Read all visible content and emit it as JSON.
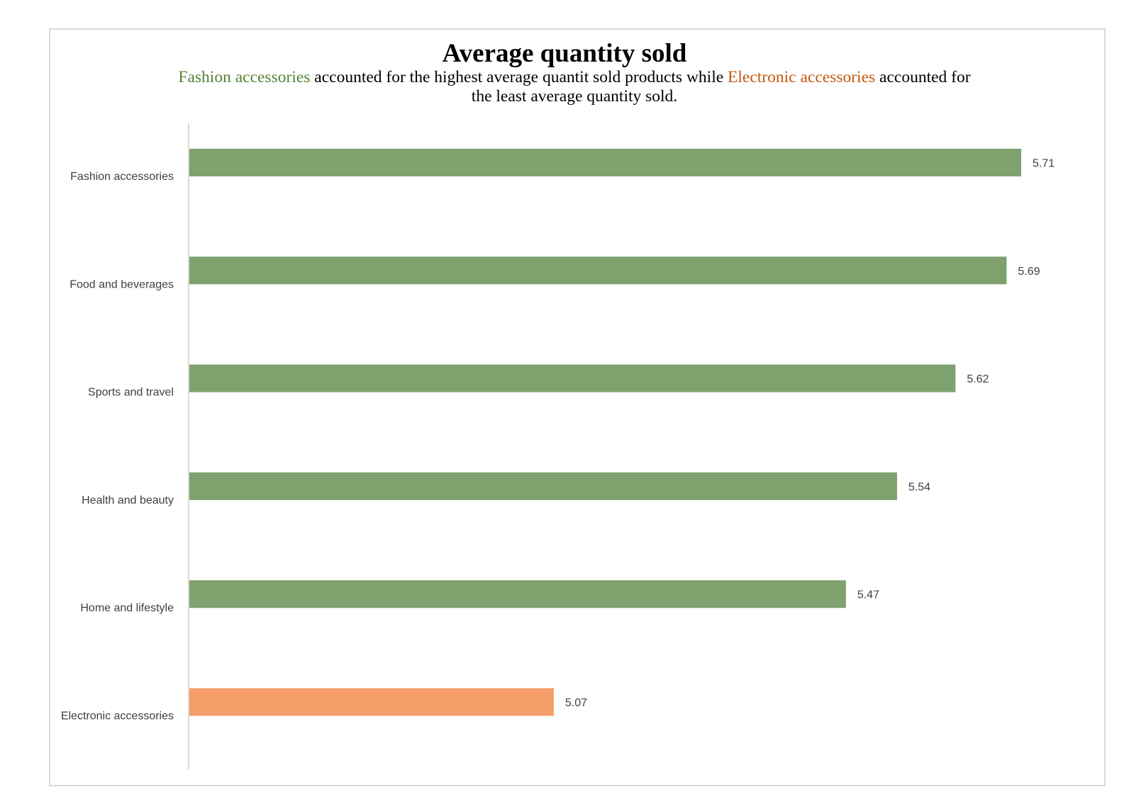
{
  "colors": {
    "highlight_high": "#7ea16e",
    "highlight_low": "#f49d68",
    "subtitle_high_text": "#548235",
    "subtitle_low_text": "#c55a11",
    "axis": "#d9d9d9",
    "label": "#404040"
  },
  "subtitle": {
    "part1": "Fashion accessories",
    "part2": " accounted for the highest average quantit sold products while ",
    "part3": "Electronic accessories",
    "part4": " accounted for the least average quantity sold."
  },
  "chart_data": {
    "type": "bar",
    "orientation": "horizontal",
    "title": "Average quantity sold",
    "categories": [
      "Fashion accessories",
      "Food and beverages",
      "Sports and travel",
      "Health and beauty",
      "Home and lifestyle",
      "Electronic accessories"
    ],
    "values": [
      5.71,
      5.69,
      5.62,
      5.54,
      5.47,
      5.07
    ],
    "bar_colors": [
      "#7ea16e",
      "#7ea16e",
      "#7ea16e",
      "#7ea16e",
      "#7ea16e",
      "#f49d68"
    ],
    "data_labels": [
      "5.71",
      "5.69",
      "5.62",
      "5.54",
      "5.47",
      "5.07"
    ],
    "xlim": [
      4.57,
      5.71
    ],
    "xlabel": "",
    "ylabel": "",
    "grid": false,
    "legend": "none",
    "x_axis_visible": false
  }
}
